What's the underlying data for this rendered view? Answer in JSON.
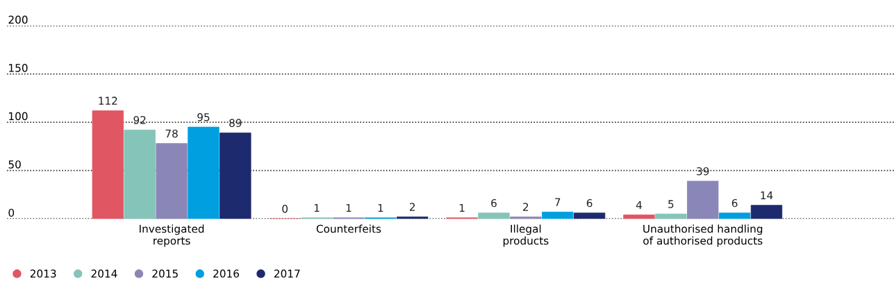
{
  "chart_data": {
    "type": "bar",
    "categories": [
      "Investigated\nreports",
      "Counterfeits",
      "Illegal\nproducts",
      "Unauthorised handling\nof authorised products"
    ],
    "series": [
      {
        "name": "2013",
        "color": "#e05663",
        "values": [
          112,
          0,
          1,
          4
        ]
      },
      {
        "name": "2014",
        "color": "#85c4b9",
        "values": [
          92,
          1,
          6,
          5
        ]
      },
      {
        "name": "2015",
        "color": "#8a87b8",
        "values": [
          78,
          1,
          2,
          39
        ]
      },
      {
        "name": "2016",
        "color": "#009fe0",
        "values": [
          95,
          1,
          7,
          6
        ]
      },
      {
        "name": "2017",
        "color": "#1d2a6e",
        "values": [
          89,
          2,
          6,
          14
        ]
      }
    ],
    "ylim": [
      0,
      200
    ],
    "yticks": [
      0,
      50,
      100,
      150,
      200
    ],
    "grid": "y",
    "legend": "bottom left",
    "data_labels": true
  }
}
